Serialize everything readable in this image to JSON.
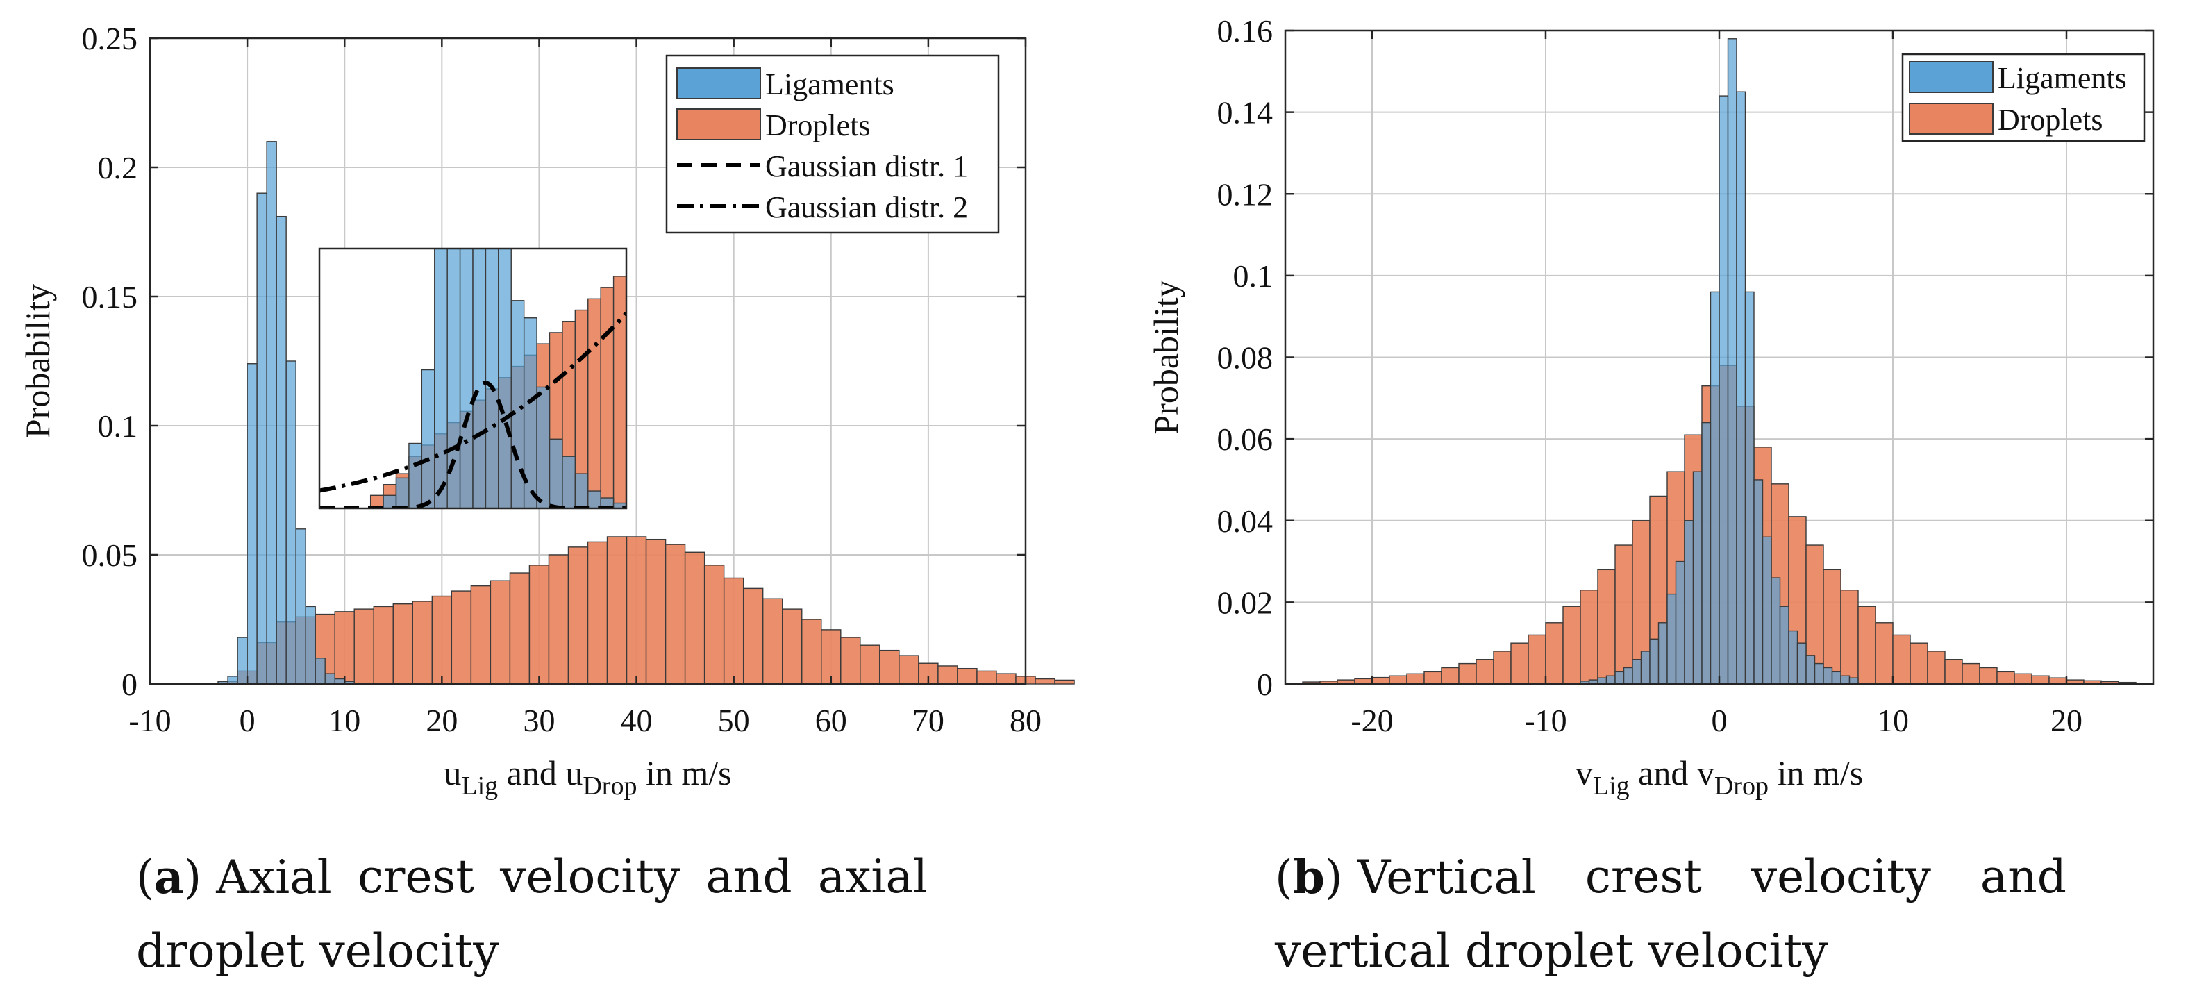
{
  "chart_data": [
    {
      "type": "bar",
      "title": "",
      "ylabel": "Probability",
      "xlabel": {
        "u1": "u",
        "sub1": "Lig",
        "mid": " and ",
        "u2": "u",
        "sub2": "Drop",
        "tail": " in m/s"
      },
      "xlim": [
        -10,
        80
      ],
      "ylim": [
        0,
        0.25
      ],
      "xticks": [
        -10,
        0,
        10,
        20,
        30,
        40,
        50,
        60,
        70,
        80
      ],
      "yticks": [
        0,
        0.05,
        0.1,
        0.15,
        0.2,
        0.25
      ],
      "xtick_labels": [
        "-10",
        "0",
        "10",
        "20",
        "30",
        "40",
        "50",
        "60",
        "70",
        "80"
      ],
      "ytick_labels": [
        "0",
        "0.05",
        "0.1",
        "0.15",
        "0.2",
        "0.25"
      ],
      "grid": true,
      "legend_position": "top-right",
      "colors": {
        "ligaments": "#5ba3d6",
        "droplets": "#e88460",
        "overlap": "#9b6f68"
      },
      "series": [
        {
          "name": "Ligaments",
          "bin_width": 1,
          "bin_start": -3,
          "values": [
            0.001,
            0.003,
            0.018,
            0.124,
            0.19,
            0.21,
            0.181,
            0.125,
            0.06,
            0.03,
            0.01,
            0.004,
            0.002,
            0.001
          ]
        },
        {
          "name": "Droplets",
          "bin_width": 2,
          "bin_start": -3,
          "values": [
            0.001,
            0.005,
            0.016,
            0.024,
            0.026,
            0.027,
            0.028,
            0.029,
            0.03,
            0.031,
            0.032,
            0.034,
            0.036,
            0.038,
            0.04,
            0.043,
            0.046,
            0.05,
            0.053,
            0.055,
            0.057,
            0.057,
            0.056,
            0.054,
            0.051,
            0.046,
            0.041,
            0.037,
            0.033,
            0.029,
            0.025,
            0.021,
            0.018,
            0.015,
            0.013,
            0.011,
            0.008,
            0.007,
            0.006,
            0.005,
            0.004,
            0.003,
            0.002,
            0.0015
          ]
        }
      ],
      "legend": [
        "Ligaments",
        "Droplets",
        "Gaussian distr. 1",
        "Gaussian distr. 2"
      ],
      "inset": {
        "xlim": [
          -2,
          10
        ],
        "ylim": [
          0,
          0.03
        ],
        "gaussian_1": {
          "name": "Gaussian distr. 1",
          "style": "dashed",
          "mean": 4.5,
          "sigma": 0.9,
          "peak": 0.0145
        },
        "gaussian_2": {
          "name": "Gaussian distr. 2",
          "style": "dash-dot",
          "mean": 24,
          "sigma": 10,
          "peak": 0.06
        }
      },
      "caption": {
        "tag": "a",
        "line1_words": [
          "Axial",
          "crest",
          "velocity",
          "and",
          "axial"
        ],
        "line2": "droplet velocity"
      }
    },
    {
      "type": "bar",
      "title": "",
      "ylabel": "Probability",
      "xlabel": {
        "u1": "v",
        "sub1": "Lig",
        "mid": " and ",
        "u2": "v",
        "sub2": "Drop",
        "tail": " in m/s"
      },
      "xlim": [
        -25,
        25
      ],
      "ylim": [
        0,
        0.16
      ],
      "xticks": [
        -20,
        -10,
        0,
        10,
        20
      ],
      "yticks": [
        0,
        0.02,
        0.04,
        0.06,
        0.08,
        0.1,
        0.12,
        0.14,
        0.16
      ],
      "xtick_labels": [
        "-20",
        "-10",
        "0",
        "10",
        "20"
      ],
      "ytick_labels": [
        "0",
        "0.02",
        "0.04",
        "0.06",
        "0.08",
        "0.1",
        "0.12",
        "0.14",
        "0.16"
      ],
      "grid": true,
      "legend_position": "top-right",
      "colors": {
        "ligaments": "#5ba3d6",
        "droplets": "#e88460",
        "overlap": "#9b6f68"
      },
      "series": [
        {
          "name": "Ligaments",
          "bin_width": 0.5,
          "bin_start": -8,
          "values": [
            0.0007,
            0.001,
            0.0015,
            0.002,
            0.003,
            0.004,
            0.006,
            0.008,
            0.011,
            0.015,
            0.022,
            0.03,
            0.04,
            0.052,
            0.064,
            0.096,
            0.144,
            0.158,
            0.145,
            0.096,
            0.05,
            0.036,
            0.026,
            0.019,
            0.013,
            0.01,
            0.007,
            0.005,
            0.004,
            0.003,
            0.002,
            0.0015
          ]
        },
        {
          "name": "Droplets",
          "bin_width": 1,
          "bin_start": -24,
          "values": [
            0.0005,
            0.0007,
            0.001,
            0.0013,
            0.0016,
            0.002,
            0.0025,
            0.003,
            0.004,
            0.005,
            0.006,
            0.008,
            0.01,
            0.012,
            0.015,
            0.019,
            0.023,
            0.028,
            0.034,
            0.04,
            0.046,
            0.052,
            0.061,
            0.073,
            0.078,
            0.068,
            0.058,
            0.049,
            0.041,
            0.034,
            0.028,
            0.023,
            0.019,
            0.015,
            0.012,
            0.01,
            0.008,
            0.006,
            0.005,
            0.004,
            0.003,
            0.0025,
            0.002,
            0.0015,
            0.001,
            0.0008,
            0.0006,
            0.0004
          ]
        }
      ],
      "legend": [
        "Ligaments",
        "Droplets"
      ],
      "caption": {
        "tag": "b",
        "line1_words": [
          "Vertical",
          "crest",
          "velocity",
          "and"
        ],
        "line2": "vertical droplet velocity"
      }
    }
  ]
}
